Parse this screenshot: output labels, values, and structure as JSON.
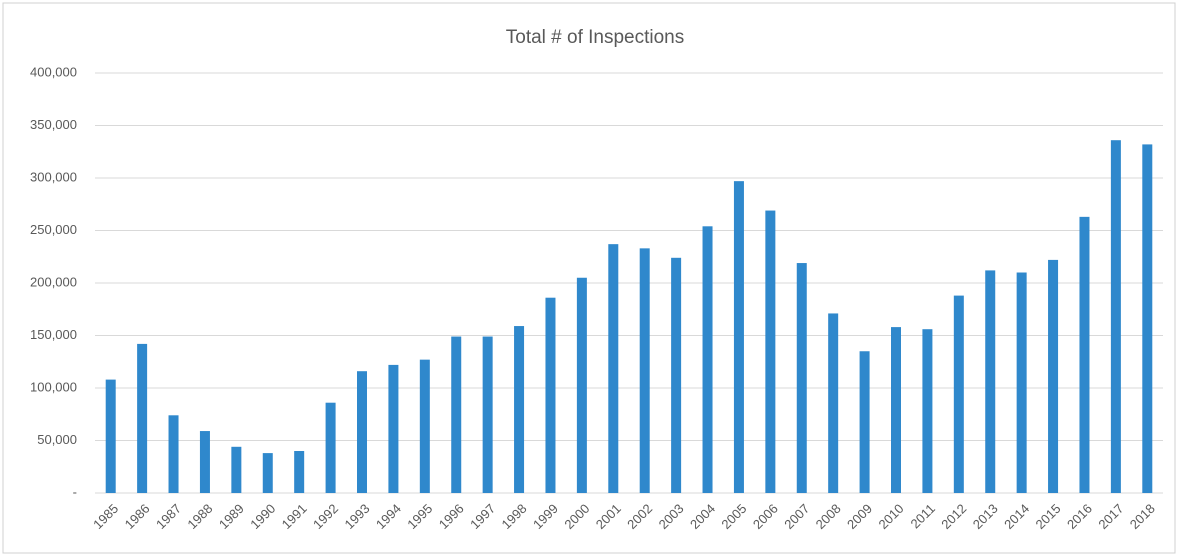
{
  "chart_data": {
    "type": "bar",
    "title": "Total # of Inspections",
    "categories": [
      "1985",
      "1986",
      "1987",
      "1988",
      "1989",
      "1990",
      "1991",
      "1992",
      "1993",
      "1994",
      "1995",
      "1996",
      "1997",
      "1998",
      "1999",
      "2000",
      "2001",
      "2002",
      "2003",
      "2004",
      "2005",
      "2006",
      "2007",
      "2008",
      "2009",
      "2010",
      "2011",
      "2012",
      "2013",
      "2014",
      "2015",
      "2016",
      "2017",
      "2018"
    ],
    "values": [
      108000,
      142000,
      74000,
      59000,
      44000,
      38000,
      40000,
      86000,
      116000,
      122000,
      127000,
      149000,
      149000,
      159000,
      186000,
      205000,
      237000,
      233000,
      224000,
      254000,
      297000,
      269000,
      219000,
      171000,
      135000,
      158000,
      156000,
      188000,
      212000,
      210000,
      222000,
      263000,
      336000,
      332000
    ],
    "color": "#2f88cc",
    "ylim": [
      0,
      400000
    ],
    "yticks": [
      {
        "value": 0,
        "label": "-"
      },
      {
        "value": 50000,
        "label": "50,000"
      },
      {
        "value": 100000,
        "label": "100,000"
      },
      {
        "value": 150000,
        "label": "150,000"
      },
      {
        "value": 200000,
        "label": "200,000"
      },
      {
        "value": 250000,
        "label": "250,000"
      },
      {
        "value": 300000,
        "label": "300,000"
      },
      {
        "value": 350000,
        "label": "350,000"
      },
      {
        "value": 400000,
        "label": "400,000"
      }
    ],
    "grid": true
  }
}
